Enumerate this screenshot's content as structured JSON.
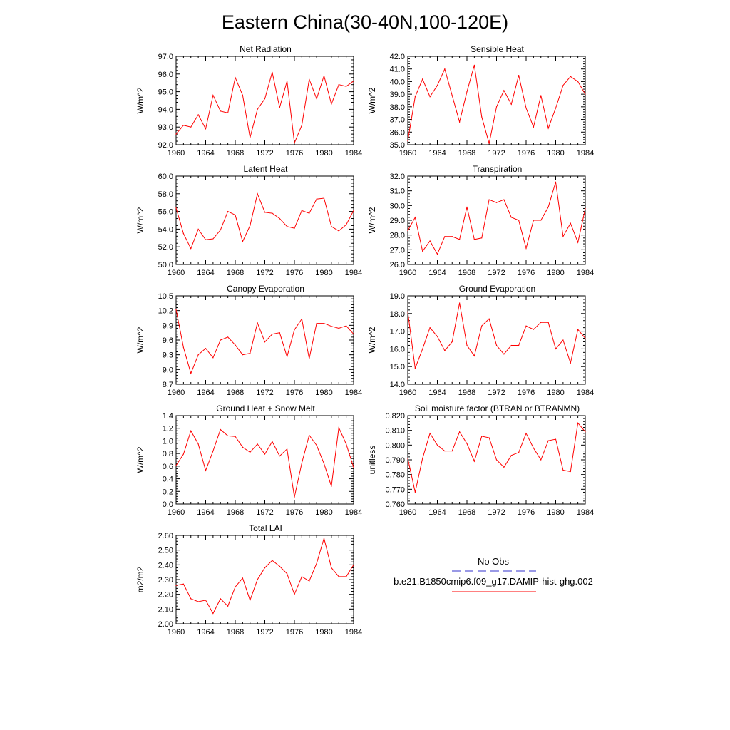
{
  "figure": {
    "title": "Eastern China(30-40N,100-120E)"
  },
  "legend": {
    "entries": [
      {
        "label": "No Obs",
        "color": "#3333cc",
        "style": "dashed"
      },
      {
        "label": "b.e21.B1850cmip6.f09_g17.DAMIP-hist-ghg.002",
        "color": "#ff0000",
        "style": "solid"
      }
    ]
  },
  "chart_data": [
    {
      "type": "line",
      "title": "Net Radiation",
      "ylabel": "W/m^2",
      "xlim": [
        1960,
        1984
      ],
      "ylim": [
        92.0,
        97.0
      ],
      "xticks": [
        "1960",
        "1964",
        "1968",
        "1972",
        "1976",
        "1980",
        "1984"
      ],
      "yticks": [
        "92.0",
        "93.0",
        "94.0",
        "95.0",
        "96.0",
        "97.0"
      ],
      "x": [
        1960,
        1961,
        1962,
        1963,
        1964,
        1965,
        1966,
        1967,
        1968,
        1969,
        1970,
        1971,
        1972,
        1973,
        1974,
        1975,
        1976,
        1977,
        1978,
        1979,
        1980,
        1981,
        1982,
        1983,
        1984
      ],
      "series": [
        {
          "color": "#ff0000",
          "values": [
            92.6,
            93.1,
            93.0,
            93.7,
            92.9,
            94.8,
            93.9,
            93.8,
            95.8,
            94.8,
            92.4,
            94.0,
            94.6,
            96.1,
            94.1,
            95.6,
            92.1,
            93.1,
            95.7,
            94.6,
            95.9,
            94.3,
            95.4,
            95.3,
            95.6
          ]
        }
      ]
    },
    {
      "type": "line",
      "title": "Sensible Heat",
      "ylabel": "W/m^2",
      "xlim": [
        1960,
        1984
      ],
      "ylim": [
        35.0,
        42.0
      ],
      "xticks": [
        "1960",
        "1964",
        "1968",
        "1972",
        "1976",
        "1980",
        "1984"
      ],
      "yticks": [
        "35.0",
        "36.0",
        "37.0",
        "38.0",
        "39.0",
        "40.0",
        "41.0",
        "42.0"
      ],
      "x": [
        1960,
        1961,
        1962,
        1963,
        1964,
        1965,
        1966,
        1967,
        1968,
        1969,
        1970,
        1971,
        1972,
        1973,
        1974,
        1975,
        1976,
        1977,
        1978,
        1979,
        1980,
        1981,
        1982,
        1983,
        1984
      ],
      "series": [
        {
          "color": "#ff0000",
          "values": [
            35.3,
            38.8,
            40.2,
            38.8,
            39.7,
            41.0,
            38.9,
            36.8,
            39.2,
            41.3,
            37.2,
            35.1,
            38.0,
            39.3,
            38.2,
            40.5,
            37.9,
            36.4,
            38.9,
            36.3,
            37.9,
            39.7,
            40.4,
            40.0,
            39.0
          ]
        }
      ]
    },
    {
      "type": "line",
      "title": "Latent Heat",
      "ylabel": "W/m^2",
      "xlim": [
        1960,
        1984
      ],
      "ylim": [
        50.0,
        60.0
      ],
      "xticks": [
        "1960",
        "1964",
        "1968",
        "1972",
        "1976",
        "1980",
        "1984"
      ],
      "yticks": [
        "50.0",
        "52.0",
        "54.0",
        "56.0",
        "58.0",
        "60.0"
      ],
      "x": [
        1960,
        1961,
        1962,
        1963,
        1964,
        1965,
        1966,
        1967,
        1968,
        1969,
        1970,
        1971,
        1972,
        1973,
        1974,
        1975,
        1976,
        1977,
        1978,
        1979,
        1980,
        1981,
        1982,
        1983,
        1984
      ],
      "series": [
        {
          "color": "#ff0000",
          "values": [
            56.4,
            53.5,
            51.8,
            54.0,
            52.8,
            52.9,
            53.9,
            56.0,
            55.6,
            52.6,
            54.4,
            58.0,
            55.9,
            55.8,
            55.2,
            54.3,
            54.1,
            56.1,
            55.8,
            57.4,
            57.5,
            54.3,
            53.8,
            54.5,
            56.1
          ]
        }
      ]
    },
    {
      "type": "line",
      "title": "Transpiration",
      "ylabel": "W/m^2",
      "xlim": [
        1960,
        1984
      ],
      "ylim": [
        26.0,
        32.0
      ],
      "xticks": [
        "1960",
        "1964",
        "1968",
        "1972",
        "1976",
        "1980",
        "1984"
      ],
      "yticks": [
        "26.0",
        "27.0",
        "28.0",
        "29.0",
        "30.0",
        "31.0",
        "32.0"
      ],
      "x": [
        1960,
        1961,
        1962,
        1963,
        1964,
        1965,
        1966,
        1967,
        1968,
        1969,
        1970,
        1971,
        1972,
        1973,
        1974,
        1975,
        1976,
        1977,
        1978,
        1979,
        1980,
        1981,
        1982,
        1983,
        1984
      ],
      "series": [
        {
          "color": "#ff0000",
          "values": [
            28.3,
            29.2,
            26.9,
            27.6,
            26.7,
            27.9,
            27.9,
            27.7,
            29.9,
            27.7,
            27.8,
            30.4,
            30.2,
            30.4,
            29.2,
            29.0,
            27.1,
            29.0,
            29.0,
            29.9,
            31.6,
            27.9,
            28.8,
            27.5,
            29.8
          ]
        }
      ]
    },
    {
      "type": "line",
      "title": "Canopy Evaporation",
      "ylabel": "W/m^2",
      "xlim": [
        1960,
        1984
      ],
      "ylim": [
        8.7,
        10.5
      ],
      "xticks": [
        "1960",
        "1964",
        "1968",
        "1972",
        "1976",
        "1980",
        "1984"
      ],
      "yticks": [
        "8.7",
        "9.0",
        "9.3",
        "9.6",
        "9.9",
        "10.2",
        "10.5"
      ],
      "x": [
        1960,
        1961,
        1962,
        1963,
        1964,
        1965,
        1966,
        1967,
        1968,
        1969,
        1970,
        1971,
        1972,
        1973,
        1974,
        1975,
        1976,
        1977,
        1978,
        1979,
        1980,
        1981,
        1982,
        1983,
        1984
      ],
      "series": [
        {
          "color": "#ff0000",
          "values": [
            10.22,
            9.45,
            8.92,
            9.3,
            9.43,
            9.24,
            9.6,
            9.66,
            9.5,
            9.3,
            9.33,
            9.95,
            9.56,
            9.72,
            9.75,
            9.26,
            9.81,
            10.03,
            9.22,
            9.94,
            9.94,
            9.88,
            9.84,
            9.89,
            9.72
          ]
        }
      ]
    },
    {
      "type": "line",
      "title": "Ground Evaporation",
      "ylabel": "W/m^2",
      "xlim": [
        1960,
        1984
      ],
      "ylim": [
        14.0,
        19.0
      ],
      "xticks": [
        "1960",
        "1964",
        "1968",
        "1972",
        "1976",
        "1980",
        "1984"
      ],
      "yticks": [
        "14.0",
        "15.0",
        "16.0",
        "17.0",
        "18.0",
        "19.0"
      ],
      "x": [
        1960,
        1961,
        1962,
        1963,
        1964,
        1965,
        1966,
        1967,
        1968,
        1969,
        1970,
        1971,
        1972,
        1973,
        1974,
        1975,
        1976,
        1977,
        1978,
        1979,
        1980,
        1981,
        1982,
        1983,
        1984
      ],
      "series": [
        {
          "color": "#ff0000",
          "values": [
            18.1,
            14.9,
            16.0,
            17.2,
            16.7,
            15.9,
            16.4,
            18.6,
            16.2,
            15.6,
            17.3,
            17.7,
            16.2,
            15.7,
            16.2,
            16.2,
            17.3,
            17.1,
            17.5,
            17.5,
            16.0,
            16.5,
            15.2,
            17.1,
            16.6
          ]
        }
      ]
    },
    {
      "type": "line",
      "title": "Ground Heat + Snow Melt",
      "ylabel": "W/m^2",
      "xlim": [
        1960,
        1984
      ],
      "ylim": [
        0.0,
        1.4
      ],
      "xticks": [
        "1960",
        "1964",
        "1968",
        "1972",
        "1976",
        "1980",
        "1984"
      ],
      "yticks": [
        "0.0",
        "0.2",
        "0.4",
        "0.6",
        "0.8",
        "1.0",
        "1.2",
        "1.4"
      ],
      "x": [
        1960,
        1961,
        1962,
        1963,
        1964,
        1965,
        1966,
        1967,
        1968,
        1969,
        1970,
        1971,
        1972,
        1973,
        1974,
        1975,
        1976,
        1977,
        1978,
        1979,
        1980,
        1981,
        1982,
        1983,
        1984
      ],
      "series": [
        {
          "color": "#ff0000",
          "values": [
            0.61,
            0.79,
            1.16,
            0.95,
            0.53,
            0.84,
            1.18,
            1.08,
            1.07,
            0.9,
            0.82,
            0.95,
            0.79,
            0.99,
            0.76,
            0.87,
            0.11,
            0.65,
            1.09,
            0.93,
            0.64,
            0.28,
            1.21,
            0.95,
            0.58
          ]
        }
      ]
    },
    {
      "type": "line",
      "title": "Soil moisture factor (BTRAN or BTRANMN)",
      "ylabel": "unitless",
      "xlim": [
        1960,
        1984
      ],
      "ylim": [
        0.76,
        0.82
      ],
      "xticks": [
        "1960",
        "1964",
        "1968",
        "1972",
        "1976",
        "1980",
        "1984"
      ],
      "yticks": [
        "0.760",
        "0.770",
        "0.780",
        "0.790",
        "0.800",
        "0.810",
        "0.820"
      ],
      "x": [
        1960,
        1961,
        1962,
        1963,
        1964,
        1965,
        1966,
        1967,
        1968,
        1969,
        1970,
        1971,
        1972,
        1973,
        1974,
        1975,
        1976,
        1977,
        1978,
        1979,
        1980,
        1981,
        1982,
        1983,
        1984
      ],
      "series": [
        {
          "color": "#ff0000",
          "values": [
            0.791,
            0.768,
            0.791,
            0.808,
            0.8,
            0.796,
            0.796,
            0.809,
            0.801,
            0.789,
            0.806,
            0.805,
            0.79,
            0.785,
            0.793,
            0.795,
            0.808,
            0.798,
            0.79,
            0.803,
            0.804,
            0.783,
            0.782,
            0.815,
            0.809
          ]
        }
      ]
    },
    {
      "type": "line",
      "title": "Total LAI",
      "ylabel": "m2/m2",
      "xlim": [
        1960,
        1984
      ],
      "ylim": [
        2.0,
        2.6
      ],
      "xticks": [
        "1960",
        "1964",
        "1968",
        "1972",
        "1976",
        "1980",
        "1984"
      ],
      "yticks": [
        "2.00",
        "2.10",
        "2.20",
        "2.30",
        "2.40",
        "2.50",
        "2.60"
      ],
      "x": [
        1960,
        1961,
        1962,
        1963,
        1964,
        1965,
        1966,
        1967,
        1968,
        1969,
        1970,
        1971,
        1972,
        1973,
        1974,
        1975,
        1976,
        1977,
        1978,
        1979,
        1980,
        1981,
        1982,
        1983,
        1984
      ],
      "series": [
        {
          "color": "#ff0000",
          "values": [
            2.26,
            2.27,
            2.17,
            2.15,
            2.16,
            2.07,
            2.17,
            2.12,
            2.25,
            2.31,
            2.16,
            2.3,
            2.38,
            2.43,
            2.39,
            2.34,
            2.2,
            2.32,
            2.29,
            2.41,
            2.58,
            2.38,
            2.32,
            2.32,
            2.4
          ]
        }
      ]
    }
  ]
}
